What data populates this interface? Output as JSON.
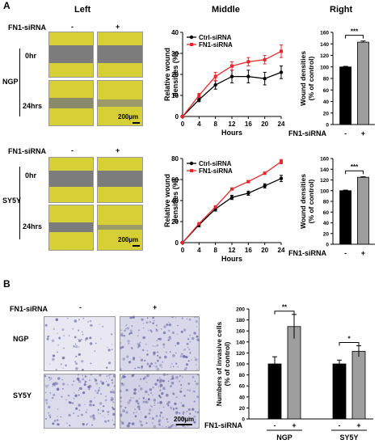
{
  "panel_a": {
    "letter": "A",
    "col_left": "Left",
    "col_middle": "Middle",
    "col_right": "Right",
    "treatment_label": "FN1-siRNA",
    "minus": "-",
    "plus": "+",
    "time_0": "0hr",
    "time_24": "24hrs",
    "cell_ngp": "NGP",
    "cell_sy5y": "SY5Y",
    "scale_text": "200µm"
  },
  "panel_b": {
    "letter": "B",
    "treatment_label": "FN1-siRNA",
    "minus": "-",
    "plus": "+",
    "row_ngp": "NGP",
    "row_sy5y": "SY5Y",
    "scale_text": "200µm"
  },
  "colors": {
    "ctrl": "#000000",
    "fn1": "#e8262b",
    "bar_ctrl": "#000000",
    "bar_fn1": "#9e9e9e",
    "micro_yellow": "#d6cf36",
    "micro_gray": "#7c7c7c",
    "invasion_bg": "#e9e8f2",
    "invasion_dot": "#6b6aa6"
  },
  "chart_data": [
    {
      "id": "ngp_line",
      "type": "line",
      "x": [
        0,
        4,
        8,
        12,
        16,
        20,
        24
      ],
      "xticks": [
        "0",
        "4",
        "8",
        "12",
        "16",
        "20",
        "24"
      ],
      "xlabel": "Hours",
      "ylabel": "Relative wound densities (%)",
      "ylim": [
        0,
        40
      ],
      "yticks": [
        "0",
        "10",
        "20",
        "30",
        "40"
      ],
      "legend_position": "top-left",
      "series": [
        {
          "name": "Ctrl-siRNA",
          "color": "#000000",
          "marker": "circle",
          "values": [
            0,
            8,
            15,
            19,
            19,
            18,
            21
          ],
          "err": [
            0,
            1,
            2,
            3,
            3,
            3,
            3
          ]
        },
        {
          "name": "FN1-siRNA",
          "color": "#e8262b",
          "marker": "square",
          "values": [
            0,
            10,
            19,
            24,
            26,
            27,
            31
          ],
          "err": [
            0,
            1,
            2,
            2,
            2,
            2,
            3
          ]
        }
      ]
    },
    {
      "id": "sy5y_line",
      "type": "line",
      "x": [
        0,
        4,
        8,
        12,
        16,
        20,
        24
      ],
      "xticks": [
        "0",
        "4",
        "8",
        "12",
        "16",
        "20",
        "24"
      ],
      "xlabel": "Hours",
      "ylabel": "Relative wound densities (%)",
      "ylim": [
        0,
        80
      ],
      "yticks": [
        "0",
        "20",
        "40",
        "60",
        "80"
      ],
      "legend_position": "top-left",
      "series": [
        {
          "name": "Ctrl-siRNA",
          "color": "#000000",
          "marker": "circle",
          "values": [
            0,
            17,
            32,
            43,
            47,
            54,
            61
          ],
          "err": [
            0,
            2,
            2,
            2,
            2,
            2,
            3
          ]
        },
        {
          "name": "FN1-siRNA",
          "color": "#e8262b",
          "marker": "square",
          "values": [
            0,
            18,
            34,
            51,
            58,
            66,
            77
          ],
          "err": [
            0,
            1,
            1,
            1,
            1,
            1,
            2
          ]
        }
      ]
    },
    {
      "id": "ngp_bar",
      "type": "bar",
      "categories": [
        "-",
        "+"
      ],
      "values": [
        100,
        143
      ],
      "err": [
        1,
        2
      ],
      "colors": [
        "#000000",
        "#9e9e9e"
      ],
      "ylabel": "Wound densities (% of control)",
      "ylim": [
        0,
        160
      ],
      "yticks": [
        "0",
        "20",
        "40",
        "60",
        "80",
        "100",
        "120",
        "140",
        "160"
      ],
      "xgroup_label": "FN1-siRNA",
      "significance": "***"
    },
    {
      "id": "sy5y_bar",
      "type": "bar",
      "categories": [
        "-",
        "+"
      ],
      "values": [
        100,
        125
      ],
      "err": [
        1,
        1
      ],
      "colors": [
        "#000000",
        "#9e9e9e"
      ],
      "ylabel": "Wound densities (% of control)",
      "ylim": [
        0,
        160
      ],
      "yticks": [
        "0",
        "20",
        "40",
        "60",
        "80",
        "100",
        "120",
        "140",
        "160"
      ],
      "xgroup_label": "FN1-siRNA",
      "significance": "***"
    },
    {
      "id": "invasion_bar",
      "type": "bar",
      "groups": [
        "NGP",
        "SY5Y"
      ],
      "categories": [
        "-",
        "+"
      ],
      "series": [
        {
          "color": "#000000",
          "values": [
            100,
            100
          ],
          "err": [
            13,
            7
          ]
        },
        {
          "color": "#9e9e9e",
          "values": [
            168,
            123
          ],
          "err": [
            22,
            10
          ]
        }
      ],
      "ylabel": "Numbers of invasive cells (% of control)",
      "ylim": [
        0,
        200
      ],
      "yticks": [
        "0",
        "20",
        "40",
        "60",
        "80",
        "100",
        "120",
        "140",
        "160",
        "180",
        "200"
      ],
      "xgroup_label": "FN1-siRNA",
      "significance": [
        "**",
        "*"
      ]
    }
  ]
}
